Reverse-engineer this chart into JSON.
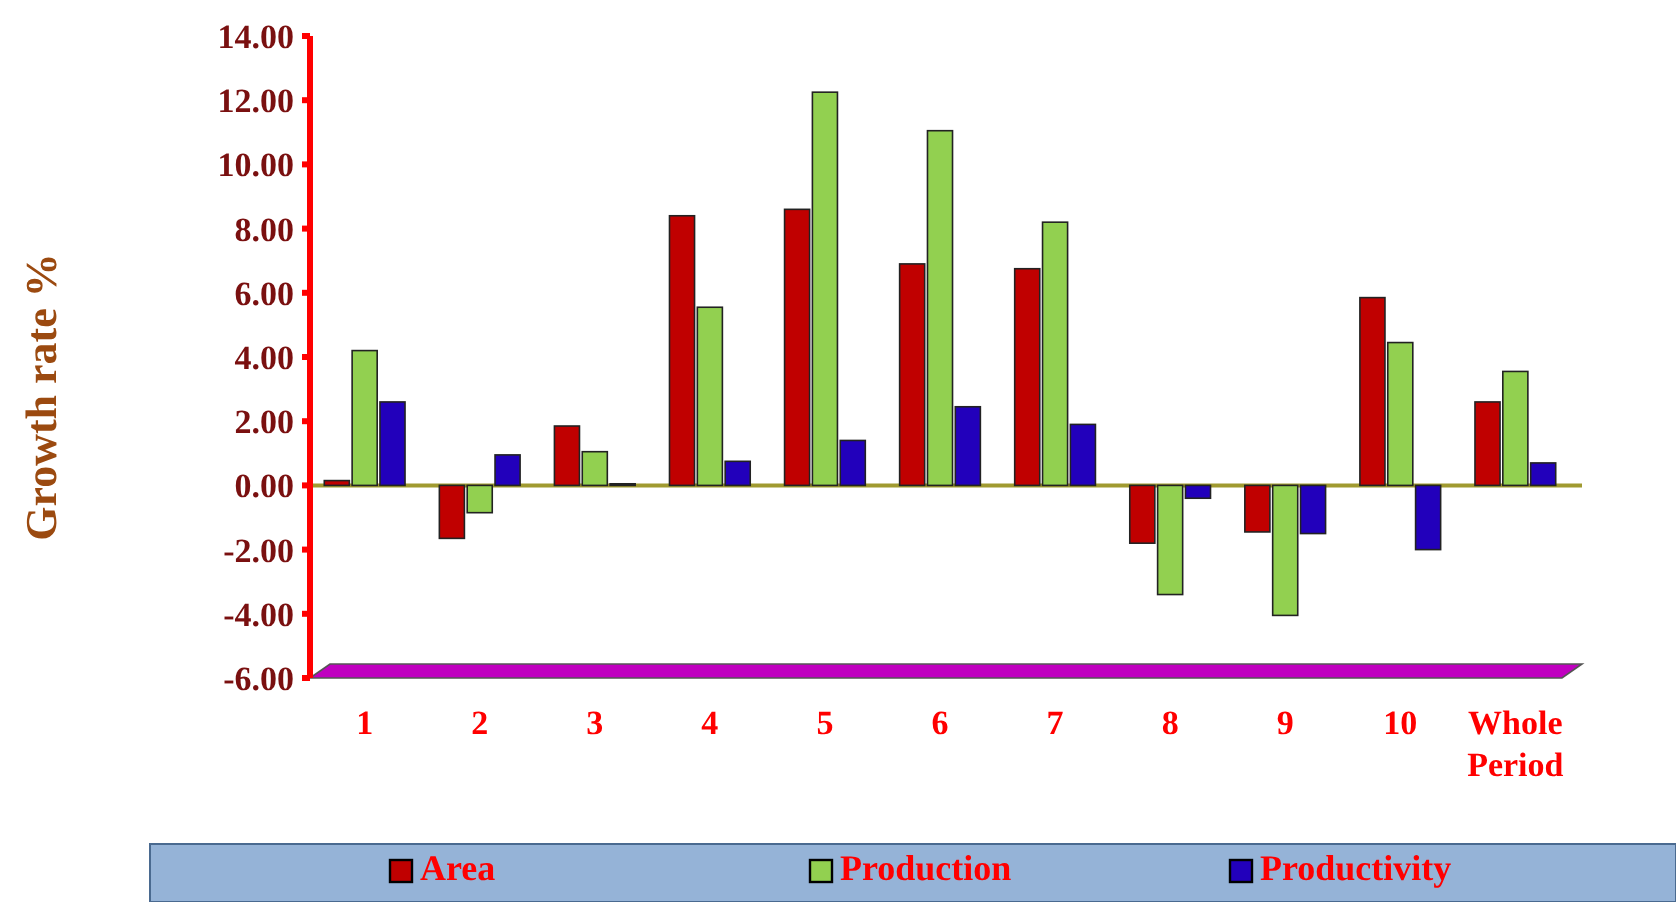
{
  "chart_data": {
    "type": "bar",
    "ylabel": "Growth rate %",
    "categories": [
      "1",
      "2",
      "3",
      "4",
      "5",
      "6",
      "7",
      "8",
      "9",
      "10",
      "Whole Period"
    ],
    "series": [
      {
        "name": "Area",
        "color": "#c00000",
        "values": [
          0.15,
          -1.65,
          1.85,
          8.4,
          8.6,
          6.9,
          6.75,
          -1.8,
          -1.45,
          5.85,
          2.6
        ]
      },
      {
        "name": "Production",
        "color": "#92d050",
        "values": [
          4.2,
          -0.85,
          1.05,
          5.55,
          12.25,
          11.05,
          8.2,
          -3.4,
          -4.05,
          4.45,
          3.55
        ]
      },
      {
        "name": "Productivity",
        "color": "#2200bb",
        "values": [
          2.6,
          0.95,
          0.05,
          0.75,
          1.4,
          2.45,
          1.9,
          -0.4,
          -1.5,
          -2.0,
          0.7
        ]
      }
    ],
    "ylim": [
      -6,
      14
    ],
    "yticks": [
      {
        "value": -6,
        "label": "-6.00"
      },
      {
        "value": -4,
        "label": "-4.00"
      },
      {
        "value": -2,
        "label": "-2.00"
      },
      {
        "value": 0,
        "label": "0.00"
      },
      {
        "value": 2,
        "label": "2.00"
      },
      {
        "value": 4,
        "label": "4.00"
      },
      {
        "value": 6,
        "label": "6.00"
      },
      {
        "value": 8,
        "label": "8.00"
      },
      {
        "value": 10,
        "label": "10.00"
      },
      {
        "value": 12,
        "label": "12.00"
      },
      {
        "value": 14,
        "label": "14.00"
      }
    ],
    "ref_lines": [
      {
        "axis": "y",
        "value": 0,
        "color": "#a09a30"
      }
    ],
    "grid": false,
    "legend": "bottom"
  }
}
